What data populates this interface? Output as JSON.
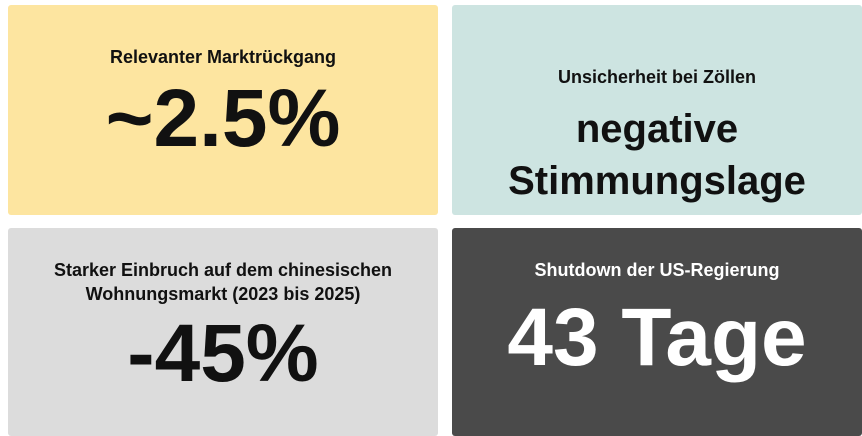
{
  "cards": [
    {
      "label": [
        "Relevanter Marktrückgang"
      ],
      "value": [
        "~2.5%"
      ]
    },
    {
      "label": [
        "Unsicherheit bei Zöllen"
      ],
      "value": [
        "negative",
        "Stimmungslage"
      ]
    },
    {
      "label": [
        "Starker Einbruch auf dem chinesischen",
        "Wohnungsmarkt (2023 bis 2025)"
      ],
      "value": [
        "-45%"
      ]
    },
    {
      "label": [
        "Shutdown der US-Regierung"
      ],
      "value": [
        "43 Tage"
      ]
    }
  ]
}
